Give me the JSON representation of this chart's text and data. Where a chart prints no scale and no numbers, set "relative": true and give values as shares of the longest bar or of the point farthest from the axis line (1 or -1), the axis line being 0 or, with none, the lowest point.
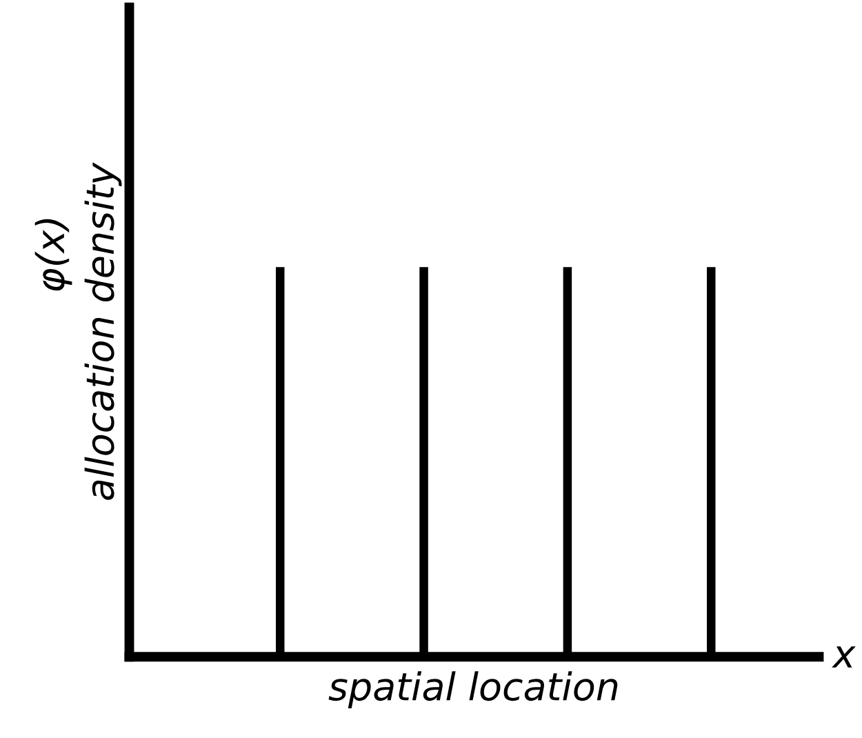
{
  "chart_data": {
    "type": "bar",
    "relative": true,
    "categories": [
      null,
      null,
      null,
      null
    ],
    "values": [
      1,
      1,
      1,
      1
    ],
    "color": "#000000",
    "xlabel": "spatial location",
    "ylabel": "allocation density",
    "annotations": [
      "φ(x)",
      "x"
    ],
    "grid": false,
    "legend": false
  }
}
